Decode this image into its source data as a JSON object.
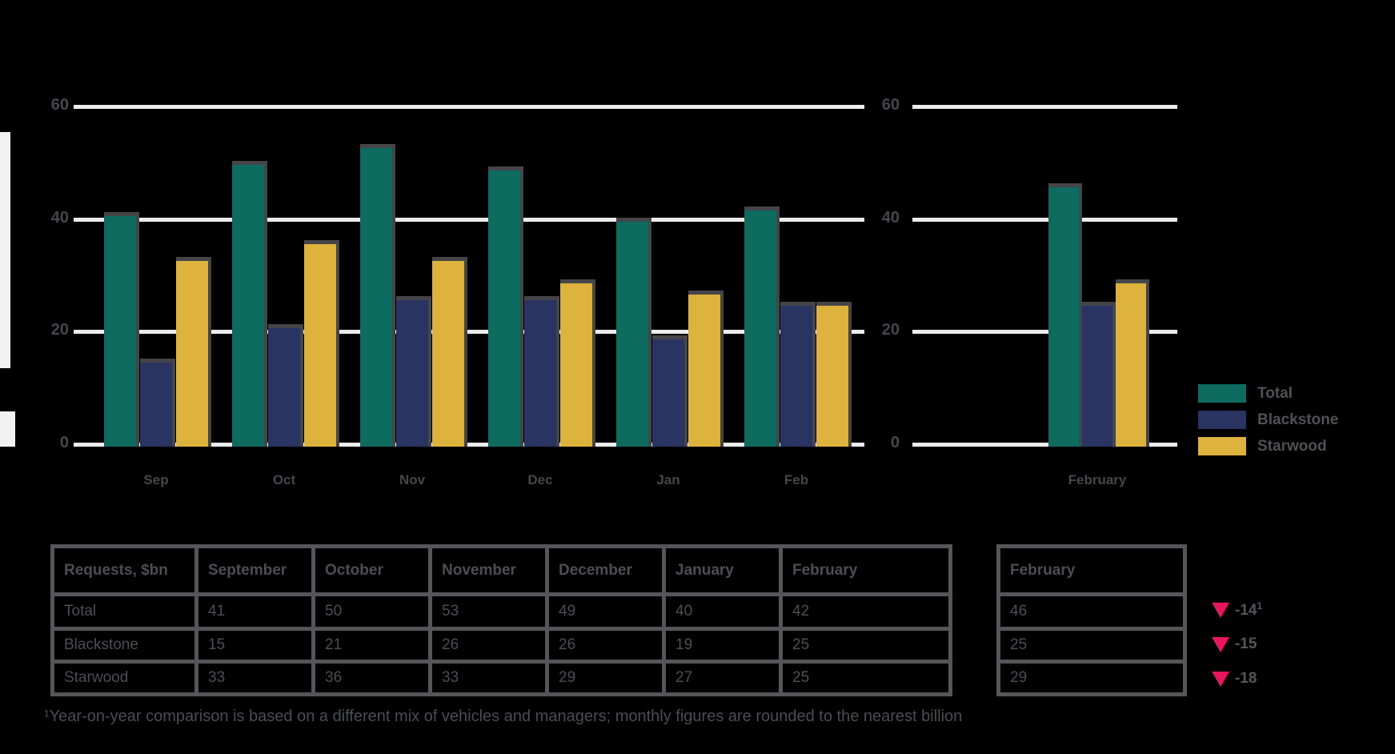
{
  "colors": {
    "background": "#000000",
    "teal": "#0d6b60",
    "navy": "#2a3462",
    "yellow": "#ddb23d",
    "arrow_red": "#e8175d",
    "gridline": "#ececec",
    "muted_text": "#4d4e52",
    "table_border": "#55565a"
  },
  "chart_data": {
    "type": "bar",
    "title": "",
    "categories": [
      "Sep",
      "Oct",
      "Nov",
      "Dec",
      "Jan",
      "Feb"
    ],
    "series": [
      {
        "name": "Total",
        "color_key": "teal",
        "values": [
          41,
          50,
          53,
          49,
          40,
          42
        ],
        "latest": 46
      },
      {
        "name": "Blackstone",
        "color_key": "navy",
        "values": [
          15,
          21,
          26,
          26,
          19,
          25
        ],
        "latest": 25
      },
      {
        "name": "Starwood",
        "color_key": "yellow",
        "values": [
          33,
          36,
          33,
          29,
          27,
          25
        ],
        "latest": 29
      }
    ],
    "latest_group_label": "February",
    "ylabel": "",
    "ylim": [
      0,
      60
    ],
    "yticks": [
      60,
      40,
      20,
      0
    ],
    "grid": "horizontal",
    "legend_position": "right"
  },
  "legend": {
    "items": [
      {
        "label": "Total",
        "color_key": "teal"
      },
      {
        "label": "Blackstone",
        "color_key": "navy"
      },
      {
        "label": "Starwood",
        "color_key": "yellow"
      }
    ]
  },
  "table": {
    "header": [
      "Requests, $bn",
      "September",
      "October",
      "November",
      "December",
      "January",
      "February"
    ],
    "rows": [
      {
        "label": "Total",
        "values": [
          "41",
          "50",
          "53",
          "49",
          "40",
          "42"
        ]
      },
      {
        "label": "Blackstone",
        "values": [
          "15",
          "21",
          "26",
          "26",
          "19",
          "25"
        ]
      },
      {
        "label": "Starwood",
        "values": [
          "33",
          "36",
          "33",
          "29",
          "27",
          "25"
        ]
      }
    ],
    "latest_header": "February",
    "latest_values": [
      "46",
      "25",
      "29"
    ],
    "changes": [
      {
        "direction": "down",
        "label": "-14",
        "superscript": "1"
      },
      {
        "direction": "down",
        "label": "-15",
        "superscript": ""
      },
      {
        "direction": "down",
        "label": "-18",
        "superscript": ""
      }
    ]
  },
  "footnote": "¹Year-on-year comparison is based on a different mix of vehicles and managers; monthly figures are rounded to the nearest billion"
}
